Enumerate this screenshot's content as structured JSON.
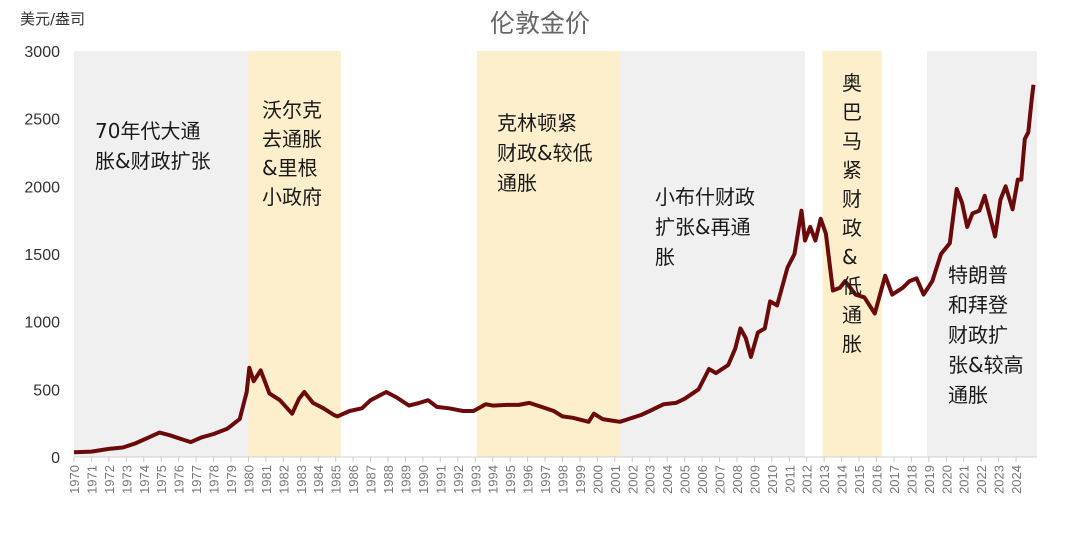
{
  "chart_data": {
    "type": "line",
    "title": "伦敦金价",
    "ylabel": "美元/盎司",
    "xlabel": "",
    "xlim": [
      1970,
      2025.2
    ],
    "ylim": [
      0,
      3000
    ],
    "yticks": [
      0,
      500,
      1000,
      1500,
      2000,
      2500,
      3000
    ],
    "xticks": [
      "1970",
      "1971",
      "1972",
      "1973",
      "1974",
      "1975",
      "1976",
      "1977",
      "1978",
      "1979",
      "1980",
      "1981",
      "1982",
      "1983",
      "1984",
      "1985",
      "1986",
      "1987",
      "1988",
      "1989",
      "1990",
      "1991",
      "1992",
      "1993",
      "1994",
      "1995",
      "1996",
      "1997",
      "1998",
      "1999",
      "2000",
      "2001",
      "2002",
      "2003",
      "2004",
      "2005",
      "2006",
      "2007",
      "2008",
      "2009",
      "2010",
      "2011",
      "2012",
      "2013",
      "2014",
      "2015",
      "2016",
      "2017",
      "2018",
      "2019",
      "2020",
      "2021",
      "2022",
      "2023",
      "2024"
    ],
    "grid": false,
    "line_color": "#6b0a0a",
    "series": [
      {
        "x": [
          1970,
          1971,
          1972,
          1972.8,
          1973.5,
          1974.2,
          1974.9,
          1975.5,
          1976.2,
          1976.7,
          1977.3,
          1978,
          1978.8,
          1979.5,
          1979.9,
          1980.05,
          1980.3,
          1980.7,
          1981.2,
          1981.8,
          1982.5,
          1982.9,
          1983.2,
          1983.7,
          1984.3,
          1984.9,
          1985.1,
          1985.8,
          1986.5,
          1987,
          1987.9,
          1988.5,
          1989.2,
          1989.8,
          1990.3,
          1990.8,
          1991.5,
          1992.3,
          1992.9,
          1993.6,
          1994,
          1994.8,
          1995.5,
          1996.1,
          1996.8,
          1997.5,
          1998,
          1998.6,
          1999.5,
          1999.8,
          2000.3,
          2000.8,
          2001.3,
          2001.9,
          2002.5,
          2003,
          2003.8,
          2004.5,
          2005,
          2005.8,
          2006.4,
          2006.8,
          2007.5,
          2007.9,
          2008.2,
          2008.5,
          2008.8,
          2009.2,
          2009.6,
          2009.9,
          2010.3,
          2010.9,
          2011.3,
          2011.7,
          2011.9,
          2012.2,
          2012.5,
          2012.8,
          2013.1,
          2013.5,
          2013.9,
          2014.2,
          2014.8,
          2015.3,
          2015.9,
          2016.5,
          2016.9,
          2017.5,
          2017.9,
          2018.3,
          2018.7,
          2019.2,
          2019.7,
          2020.2,
          2020.6,
          2020.9,
          2021.2,
          2021.5,
          2021.9,
          2022.2,
          2022.8,
          2023.1,
          2023.4,
          2023.8,
          2024.1,
          2024.3,
          2024.5,
          2024.7,
          2024.9,
          2025.0
        ],
        "y": [
          35,
          40,
          60,
          70,
          100,
          140,
          180,
          160,
          130,
          110,
          145,
          170,
          210,
          280,
          480,
          660,
          560,
          640,
          470,
          420,
          320,
          430,
          480,
          400,
          360,
          310,
          300,
          340,
          360,
          420,
          480,
          440,
          380,
          400,
          420,
          370,
          360,
          340,
          340,
          390,
          380,
          385,
          385,
          400,
          370,
          340,
          300,
          290,
          260,
          320,
          280,
          270,
          260,
          285,
          310,
          340,
          390,
          400,
          430,
          500,
          650,
          620,
          680,
          800,
          950,
          880,
          740,
          920,
          950,
          1150,
          1120,
          1400,
          1500,
          1820,
          1600,
          1700,
          1600,
          1760,
          1650,
          1230,
          1250,
          1300,
          1200,
          1180,
          1060,
          1340,
          1200,
          1250,
          1300,
          1320,
          1200,
          1300,
          1500,
          1580,
          1980,
          1880,
          1700,
          1800,
          1820,
          1930,
          1630,
          1900,
          2000,
          1830,
          2050,
          2050,
          2350,
          2400,
          2650,
          2750
        ]
      }
    ],
    "regions": [
      {
        "from": 1970,
        "to": 1980,
        "color": "#f0f0f0"
      },
      {
        "from": 1980,
        "to": 1985.3,
        "color": "#fdefcc"
      },
      {
        "from": 1993.1,
        "to": 2001.3,
        "color": "#fdefcc"
      },
      {
        "from": 2001.3,
        "to": 2011.9,
        "color": "#f0f0f0"
      },
      {
        "from": 2012.9,
        "to": 2016.3,
        "color": "#fdefcc"
      },
      {
        "from": 2018.9,
        "to": 2025.2,
        "color": "#f0f0f0"
      }
    ],
    "annotations": [
      {
        "lines": [
          "70年代大通",
          "胀&财政扩张"
        ]
      },
      {
        "lines": [
          "沃尔克",
          "去通胀",
          "&里根",
          "小政府"
        ]
      },
      {
        "lines": [
          "克林顿紧",
          "财政&较低",
          "通胀"
        ]
      },
      {
        "lines": [
          "小布什财政",
          "扩张&再通",
          "胀"
        ]
      },
      {
        "lines": [
          "奥",
          "巴",
          "马",
          "紧",
          "财",
          "政",
          "&",
          "低",
          "通",
          "胀"
        ]
      },
      {
        "lines": [
          "特朗普",
          "和拜登",
          "财政扩",
          "张&较高",
          "通胀"
        ]
      }
    ]
  }
}
